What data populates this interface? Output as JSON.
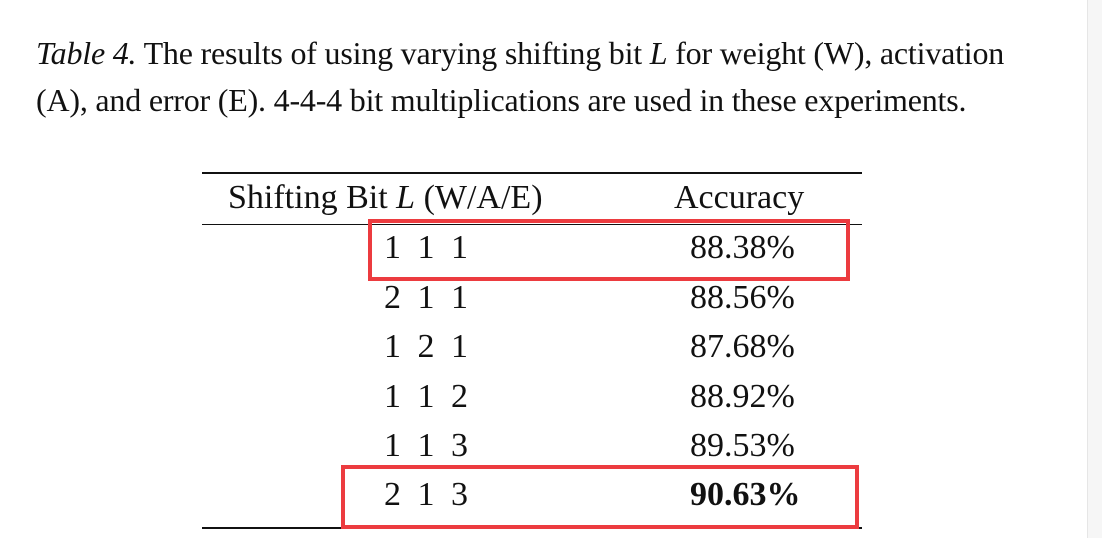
{
  "caption": {
    "label": "Table 4.",
    "text_before_var": " The results of using varying shifting bit ",
    "var": "L",
    "text_after_var": " for weight (W), activation (A), and error (E). 4-4-4 bit multiplications are used in these experiments."
  },
  "table": {
    "header": {
      "col1_before_var": "Shifting Bit ",
      "col1_var": "L",
      "col1_after_var": " (W/A/E)",
      "col2": "Accuracy"
    },
    "rows": [
      {
        "bits": "1 1 1",
        "accuracy": "88.38%"
      },
      {
        "bits": "2 1 1",
        "accuracy": "88.56%"
      },
      {
        "bits": "1 2 1",
        "accuracy": "87.68%"
      },
      {
        "bits": "1 1 2",
        "accuracy": "88.92%"
      },
      {
        "bits": "1 1 3",
        "accuracy": "89.53%"
      },
      {
        "bits": "2 1 3",
        "accuracy": "90.63%"
      }
    ]
  },
  "colors": {
    "highlight": "#ec3b3f",
    "text": "#111111"
  }
}
